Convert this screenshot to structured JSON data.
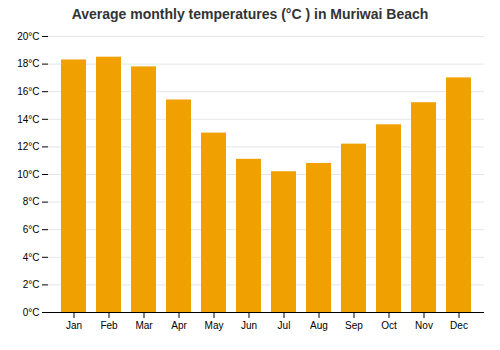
{
  "chart_data": {
    "type": "bar",
    "title": "Average monthly temperatures (°C ) in Muriwai Beach",
    "categories": [
      "Jan",
      "Feb",
      "Mar",
      "Apr",
      "May",
      "Jun",
      "Jul",
      "Aug",
      "Sep",
      "Oct",
      "Nov",
      "Dec"
    ],
    "values": [
      18.3,
      18.5,
      17.8,
      15.4,
      13.0,
      11.1,
      10.2,
      10.8,
      12.2,
      13.6,
      15.2,
      17.0
    ],
    "color": "#F0A000",
    "ylim": [
      0,
      20
    ],
    "yticks": [
      {
        "value": 0,
        "label": "0°C"
      },
      {
        "value": 2,
        "label": "2°C"
      },
      {
        "value": 4,
        "label": "4°C"
      },
      {
        "value": 6,
        "label": "6°C"
      },
      {
        "value": 8,
        "label": "8°C"
      },
      {
        "value": 10,
        "label": "10°C"
      },
      {
        "value": 12,
        "label": "12°C"
      },
      {
        "value": 14,
        "label": "14°C"
      },
      {
        "value": 16,
        "label": "16°C"
      },
      {
        "value": 18,
        "label": "18°C"
      },
      {
        "value": 20,
        "label": "20°C"
      }
    ],
    "grid": true
  }
}
